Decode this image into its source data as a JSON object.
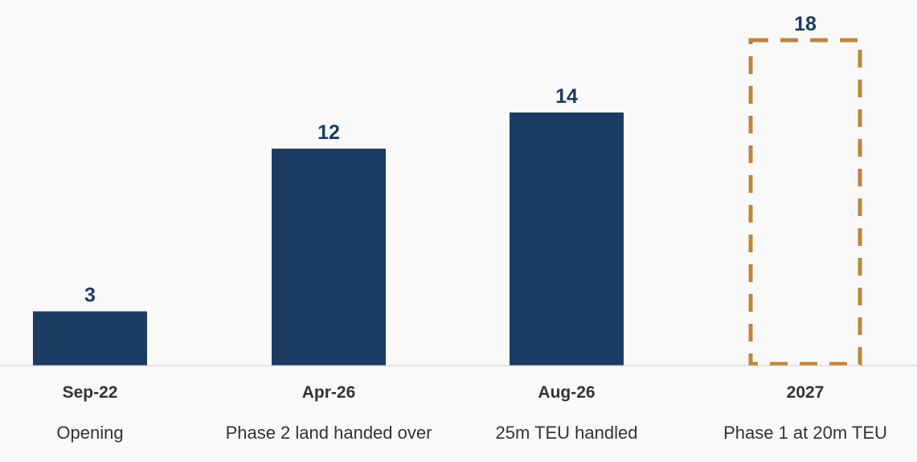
{
  "chart_data": {
    "type": "bar",
    "categories": [
      "Sep-22",
      "Apr-26",
      "Aug-26",
      "2027"
    ],
    "sublabels": [
      "Opening",
      "Phase 2 land handed over",
      "25m TEU handled",
      "Phase 1 at 20m TEU"
    ],
    "values": [
      3,
      12,
      14,
      18
    ],
    "value_labels": [
      "3",
      "12",
      "14",
      "18"
    ],
    "projected": [
      false,
      false,
      false,
      true
    ],
    "ylim": [
      0,
      18
    ],
    "grid": false,
    "legend": "none",
    "title": "",
    "xlabel": "",
    "ylabel": ""
  },
  "colors": {
    "bar": "#1a3c63",
    "projected_outline": "#c0843a",
    "baseline": "#cccccc",
    "value_text": "#1a3c63",
    "axis_text": "#333333",
    "background": "#f9f9f9"
  }
}
